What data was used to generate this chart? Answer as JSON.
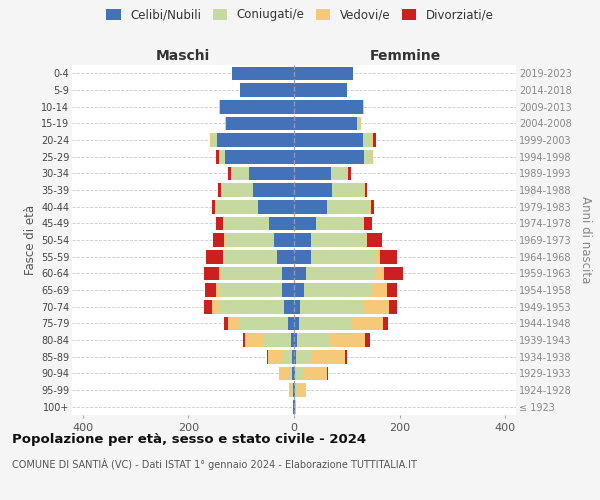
{
  "age_groups": [
    "100+",
    "95-99",
    "90-94",
    "85-89",
    "80-84",
    "75-79",
    "70-74",
    "65-69",
    "60-64",
    "55-59",
    "50-54",
    "45-49",
    "40-44",
    "35-39",
    "30-34",
    "25-29",
    "20-24",
    "15-19",
    "10-14",
    "5-9",
    "0-4"
  ],
  "birth_years": [
    "≤ 1923",
    "1924-1928",
    "1929-1933",
    "1934-1938",
    "1939-1943",
    "1944-1948",
    "1949-1953",
    "1954-1958",
    "1959-1963",
    "1964-1968",
    "1969-1973",
    "1974-1978",
    "1979-1983",
    "1984-1988",
    "1989-1993",
    "1994-1998",
    "1999-2003",
    "2004-2008",
    "2009-2013",
    "2014-2018",
    "2019-2023"
  ],
  "colors": {
    "celibi": "#4472b8",
    "coniugati": "#c5d9a0",
    "vedovi": "#f5c87a",
    "divorziati": "#cc2020"
  },
  "males": {
    "celibi": [
      1,
      2,
      3,
      4,
      5,
      12,
      18,
      22,
      22,
      32,
      38,
      48,
      68,
      78,
      85,
      130,
      145,
      128,
      140,
      102,
      118
    ],
    "coniugati": [
      0,
      2,
      5,
      15,
      52,
      92,
      122,
      118,
      115,
      100,
      92,
      85,
      82,
      60,
      35,
      12,
      12,
      2,
      2,
      0,
      0
    ],
    "vedovi": [
      0,
      5,
      20,
      30,
      35,
      20,
      15,
      8,
      5,
      3,
      2,
      1,
      0,
      0,
      0,
      0,
      2,
      0,
      0,
      0,
      0
    ],
    "divorziati": [
      0,
      0,
      0,
      2,
      5,
      8,
      15,
      20,
      28,
      32,
      22,
      14,
      5,
      5,
      5,
      5,
      0,
      0,
      0,
      0,
      0
    ]
  },
  "females": {
    "celibi": [
      2,
      2,
      2,
      4,
      5,
      10,
      12,
      18,
      22,
      32,
      32,
      42,
      62,
      72,
      70,
      132,
      130,
      120,
      130,
      100,
      112
    ],
    "coniugati": [
      0,
      5,
      15,
      30,
      62,
      100,
      120,
      130,
      132,
      122,
      102,
      88,
      82,
      60,
      30,
      15,
      15,
      5,
      2,
      0,
      0
    ],
    "vedovi": [
      2,
      15,
      45,
      62,
      68,
      58,
      48,
      28,
      16,
      8,
      5,
      2,
      2,
      2,
      2,
      2,
      5,
      2,
      0,
      0,
      0
    ],
    "divorziati": [
      0,
      0,
      2,
      5,
      8,
      10,
      15,
      18,
      36,
      32,
      28,
      16,
      5,
      5,
      5,
      0,
      5,
      0,
      0,
      0,
      0
    ]
  },
  "title": "Popolazione per età, sesso e stato civile - 2024",
  "subtitle": "COMUNE DI SANTIÀ (VC) - Dati ISTAT 1° gennaio 2024 - Elaborazione TUTTITALIA.IT",
  "xlabel_left": "Maschi",
  "xlabel_right": "Femmine",
  "ylabel_left": "Fasce di età",
  "ylabel_right": "Anni di nascita",
  "legend_labels": [
    "Celibi/Nubili",
    "Coniugati/e",
    "Vedovi/e",
    "Divorziati/e"
  ],
  "xlim": 420,
  "bg_color": "#f5f5f5",
  "plot_bg": "#ffffff",
  "grid_color": "#cccccc"
}
